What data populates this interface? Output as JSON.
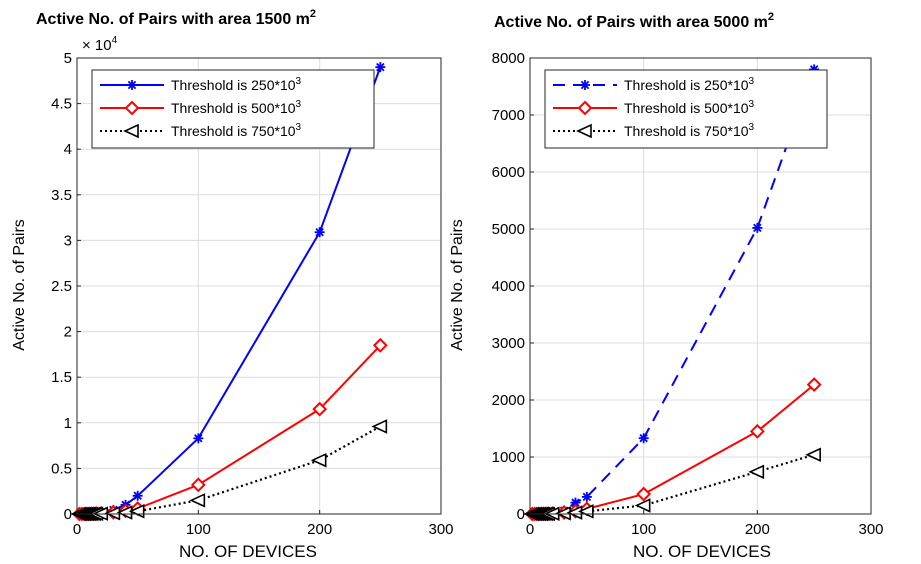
{
  "chart_data": [
    {
      "type": "line",
      "title": "Active No. of Pairs with area 1500 m",
      "title_superscript": "2",
      "xlabel": "NO. OF DEVICES",
      "ylabel": "Active No. of Pairs",
      "xlim": [
        0,
        300
      ],
      "ylim": [
        0,
        50000
      ],
      "xticks": [
        0,
        100,
        200,
        300
      ],
      "xtick_labels": [
        "0",
        "100",
        "200",
        "300"
      ],
      "yticks": [
        0,
        5000,
        10000,
        15000,
        20000,
        25000,
        30000,
        35000,
        40000,
        45000,
        50000
      ],
      "ytick_labels": [
        "0",
        "0.5",
        "1",
        "1.5",
        "2",
        "2.5",
        "3",
        "3.5",
        "4",
        "4.5",
        "5"
      ],
      "exponent_label": "× 10",
      "exponent_power": "4",
      "grid": true,
      "legend_position": "top-left",
      "series": [
        {
          "name": "Threshold is 250*10",
          "name_superscript": "3",
          "color": "#0000ff",
          "dash": "solid",
          "marker": "asterisk",
          "x": [
            2,
            4,
            6,
            8,
            10,
            12,
            14,
            16,
            20,
            30,
            40,
            50,
            100,
            200,
            250
          ],
          "y": [
            0,
            5,
            15,
            30,
            50,
            70,
            100,
            130,
            200,
            450,
            1000,
            2000,
            8300,
            30900,
            49000
          ]
        },
        {
          "name": "Threshold is 500*10",
          "name_superscript": "3",
          "color": "#ff0000",
          "dash": "solid",
          "marker": "diamond",
          "x": [
            2,
            4,
            6,
            8,
            10,
            12,
            14,
            16,
            20,
            30,
            40,
            50,
            100,
            200,
            250
          ],
          "y": [
            0,
            2,
            5,
            10,
            15,
            25,
            35,
            50,
            80,
            180,
            350,
            600,
            3200,
            11500,
            18500
          ]
        },
        {
          "name": "Threshold is 750*10",
          "name_superscript": "3",
          "color": "#000000",
          "dash": "dotted",
          "marker": "triangle-left",
          "x": [
            2,
            4,
            6,
            8,
            10,
            12,
            14,
            16,
            20,
            30,
            40,
            50,
            100,
            200,
            250
          ],
          "y": [
            0,
            1,
            3,
            5,
            8,
            12,
            17,
            22,
            35,
            80,
            160,
            300,
            1500,
            5900,
            9600
          ]
        }
      ]
    },
    {
      "type": "line",
      "title": "Active No. of Pairs with area 5000 m",
      "title_superscript": "2",
      "xlabel": "NO. OF DEVICES",
      "ylabel": "Active No. of Pairs",
      "xlim": [
        0,
        300
      ],
      "ylim": [
        0,
        8000
      ],
      "xticks": [
        0,
        100,
        200,
        300
      ],
      "xtick_labels": [
        "0",
        "100",
        "200",
        "300"
      ],
      "yticks": [
        0,
        1000,
        2000,
        3000,
        4000,
        5000,
        6000,
        7000,
        8000
      ],
      "ytick_labels": [
        "0",
        "1000",
        "2000",
        "3000",
        "4000",
        "5000",
        "6000",
        "7000",
        "8000"
      ],
      "grid": true,
      "legend_position": "top-left",
      "series": [
        {
          "name": "Threshold is 250*10",
          "name_superscript": "3",
          "color": "#0000ff",
          "dash": "dashed",
          "marker": "asterisk",
          "x": [
            2,
            4,
            6,
            8,
            10,
            12,
            14,
            16,
            20,
            30,
            40,
            50,
            100,
            200,
            250
          ],
          "y": [
            0,
            1,
            2,
            4,
            6,
            9,
            12,
            16,
            25,
            60,
            200,
            300,
            1330,
            5020,
            7800
          ]
        },
        {
          "name": "Threshold is 500*10",
          "name_superscript": "3",
          "color": "#ff0000",
          "dash": "solid",
          "marker": "diamond",
          "x": [
            2,
            4,
            6,
            8,
            10,
            12,
            14,
            16,
            20,
            30,
            40,
            50,
            100,
            200,
            250
          ],
          "y": [
            0,
            0,
            1,
            2,
            3,
            4,
            5,
            7,
            10,
            25,
            50,
            90,
            350,
            1450,
            2270
          ]
        },
        {
          "name": "Threshold is 750*10",
          "name_superscript": "3",
          "color": "#000000",
          "dash": "dotted",
          "marker": "triangle-left",
          "x": [
            2,
            4,
            6,
            8,
            10,
            12,
            14,
            16,
            20,
            30,
            40,
            50,
            100,
            200,
            250
          ],
          "y": [
            0,
            0,
            0,
            1,
            1,
            2,
            2,
            3,
            5,
            12,
            25,
            45,
            150,
            740,
            1040
          ]
        }
      ]
    }
  ]
}
